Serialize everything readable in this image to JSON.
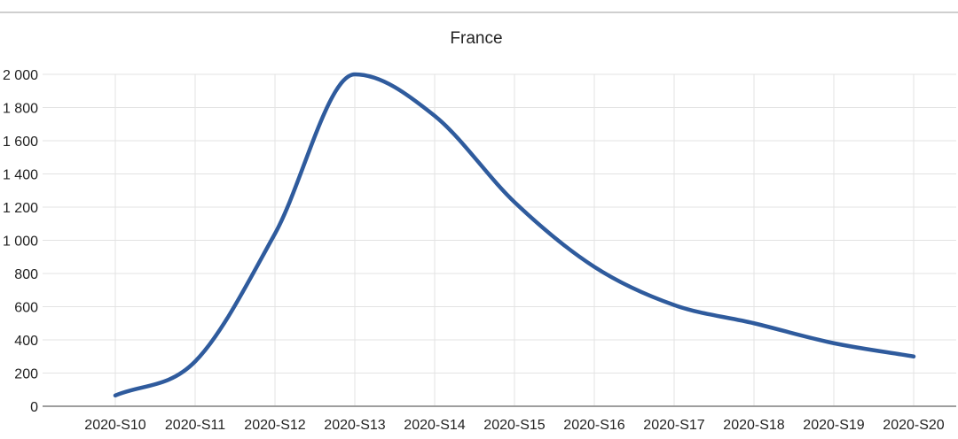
{
  "chart_data": {
    "type": "line",
    "title": "France",
    "xlabel": "",
    "ylabel": "",
    "categories": [
      "2020-S10",
      "2020-S11",
      "2020-S12",
      "2020-S13",
      "2020-S14",
      "2020-S15",
      "2020-S16",
      "2020-S17",
      "2020-S18",
      "2020-S19",
      "2020-S20"
    ],
    "series": [
      {
        "values": [
          65,
          270,
          1040,
          2000,
          1750,
          1230,
          840,
          610,
          500,
          380,
          300
        ],
        "color": "#2f5b9d"
      }
    ],
    "ylim": [
      0,
      2000
    ],
    "yticks": [
      0,
      200,
      400,
      600,
      800,
      1000,
      1200,
      1400,
      1600,
      1800,
      2000
    ],
    "ytick_labels": [
      "0",
      "200",
      "400",
      "600",
      "800",
      "1 000",
      "1 200",
      "1 400",
      "1 600",
      "1 800",
      "2 000"
    ],
    "grid": true,
    "legend": "none"
  }
}
